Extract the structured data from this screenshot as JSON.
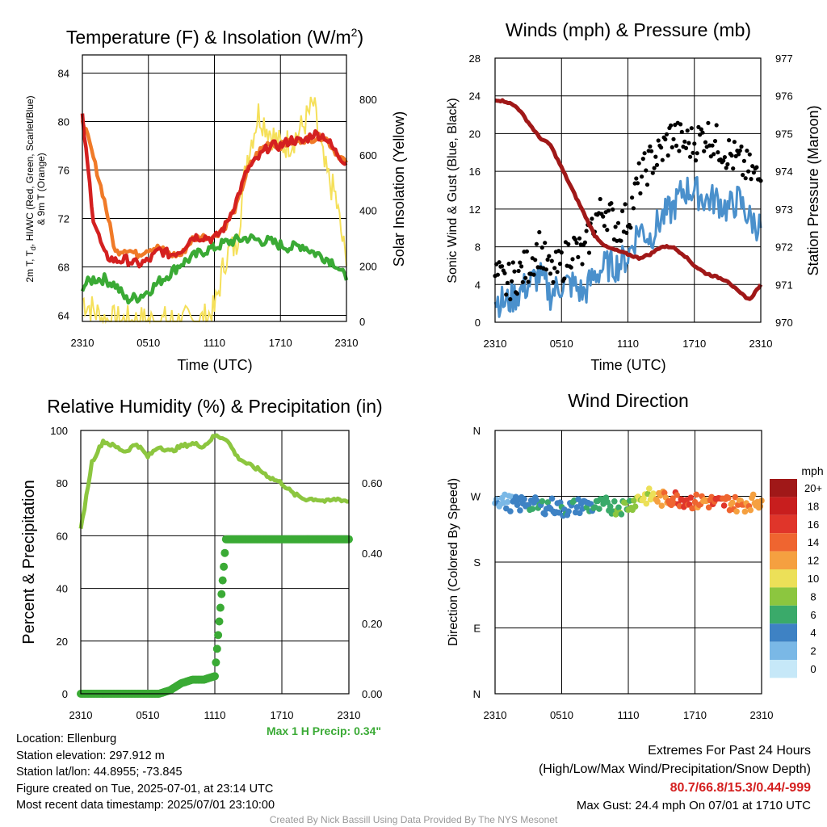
{
  "x_ticks": [
    "2310",
    "0510",
    "1110",
    "1710",
    "2310"
  ],
  "temp": {
    "title_main": "Temperature (F) & Insolation (W/m",
    "title_sup": "2",
    "title_end": ")",
    "ylabel_left_1": "2m T, T",
    "ylabel_left_sub": "d",
    "ylabel_left_2": ", HI/WC (Red, Green, Scarlet/Blue)",
    "ylabel_left_3": "& 9m T (Orange)",
    "ylabel_right": "Solar Insolation (Yellow)",
    "xlabel": "Time (UTC)",
    "left_ticks": [
      "64",
      "68",
      "72",
      "76",
      "80",
      "84"
    ],
    "right_ticks": [
      "0",
      "200",
      "400",
      "600",
      "800"
    ],
    "colors": {
      "temp": "#d42020",
      "dew": "#3aaa35",
      "t9m": "#f07a28",
      "solar": "#f5e05a"
    }
  },
  "winds": {
    "title": "Winds (mph) & Pressure (mb)",
    "ylabel_left": "Sonic Wind & Gust (Blue, Black)",
    "ylabel_right": "Station Pressure (Maroon)",
    "xlabel": "Time (UTC)",
    "left_ticks": [
      "0",
      "4",
      "8",
      "12",
      "16",
      "20",
      "24",
      "28"
    ],
    "right_ticks": [
      "970",
      "971",
      "972",
      "973",
      "974",
      "975",
      "976",
      "977"
    ],
    "colors": {
      "wind": "#4a90cc",
      "gust": "#000000",
      "pressure": "#a01818"
    }
  },
  "rh": {
    "title": "Relative Humidity (%) & Precipitation (in)",
    "ylabel_left": "Percent & Precipitation",
    "left_ticks": [
      "0",
      "20",
      "40",
      "60",
      "80",
      "100"
    ],
    "right_ticks": [
      "0.00",
      "0.20",
      "0.40",
      "0.60"
    ],
    "max_precip": "Max 1 H Precip: 0.34\"",
    "colors": {
      "rh": "#8cc63f",
      "precip": "#3aaa35"
    }
  },
  "wdir": {
    "title": "Wind Direction",
    "ylabel_left": "Direction (Colored By Speed)",
    "dir_ticks": [
      "N",
      "E",
      "S",
      "W",
      "N"
    ],
    "legend_title": "mph",
    "legend_labels": [
      "20+",
      "18",
      "16",
      "14",
      "12",
      "10",
      "8",
      "6",
      "4",
      "2",
      "0"
    ],
    "legend_colors": [
      "#a01818",
      "#c81e1e",
      "#e0352a",
      "#ef6530",
      "#f5a040",
      "#ece058",
      "#8cc63f",
      "#3aaa6a",
      "#3e82c4",
      "#7ab8e6",
      "#c6e8f8"
    ]
  },
  "info": {
    "location": "Location: Ellenburg",
    "elevation": "Station elevation: 297.912 m",
    "latlon": "Station lat/lon: 44.8955; -73.845",
    "created": "Figure created on Tue, 2025-07-01, at 23:14 UTC",
    "recent": "Most recent data timestamp: 2025/07/01 23:10:00"
  },
  "extremes": {
    "title": "Extremes For Past 24 Hours",
    "subtitle": "(High/Low/Max Wind/Precipitation/Snow Depth)",
    "values": "80.7/66.8/15.3/0.44/-999",
    "max_gust": "Max Gust: 24.4 mph On 07/01 at 1710 UTC"
  },
  "credit": "Created By Nick Bassill Using Data Provided By The NYS Mesonet",
  "chart_data": [
    {
      "type": "line",
      "x": [
        0,
        1,
        2,
        3,
        4,
        5,
        6,
        7,
        8,
        9,
        10,
        11,
        12,
        13,
        14,
        15,
        16,
        17,
        18,
        19,
        20,
        21,
        22,
        23,
        24
      ],
      "series": [
        {
          "name": "Red",
          "axis": "left",
          "values": [
            80.3,
            72,
            69,
            68.5,
            68.6,
            68.2,
            68.5,
            69.4,
            69,
            69.4,
            70.5,
            70.5,
            70.3,
            71.4,
            73.5,
            76,
            77,
            78,
            78,
            78.5,
            78.3,
            79,
            78.8,
            77.5,
            76.6
          ]
        },
        {
          "name": "Green",
          "axis": "left",
          "values": [
            66.4,
            67,
            67,
            66.5,
            65.3,
            65.5,
            66,
            66.8,
            67.5,
            68.3,
            68.8,
            69.3,
            69.6,
            70,
            70.2,
            70.4,
            70.2,
            70.1,
            69.8,
            69.6,
            69.8,
            69.2,
            68.8,
            68.3,
            66.9
          ]
        },
        {
          "name": "Orange",
          "axis": "left",
          "values": [
            80.3,
            77,
            73.5,
            69.2,
            69.5,
            69,
            69.5,
            69.6,
            69,
            69,
            70.3,
            70.5,
            70.5,
            71.4,
            73,
            76,
            77.5,
            78.3,
            78,
            78.3,
            78.5,
            78.6,
            78.8,
            77.5,
            76.6
          ]
        },
        {
          "name": "Yellow",
          "axis": "right",
          "values": [
            80,
            40,
            5,
            0,
            0,
            0,
            0,
            0,
            0,
            0,
            0,
            5,
            40,
            230,
            280,
            600,
            750,
            690,
            630,
            650,
            700,
            780,
            550,
            450,
            200
          ]
        }
      ],
      "ylim": [
        63.5,
        85.5
      ],
      "ylim_right": [
        0,
        960
      ]
    },
    {
      "type": "line",
      "x": [
        0,
        1,
        2,
        3,
        4,
        5,
        6,
        7,
        8,
        9,
        10,
        11,
        12,
        13,
        14,
        15,
        16,
        17,
        18,
        19,
        20,
        21,
        22,
        23,
        24
      ],
      "series": [
        {
          "name": "Blue",
          "axis": "left",
          "values": [
            2.5,
            2,
            3,
            4,
            5,
            3,
            4,
            4,
            3,
            5,
            6,
            6,
            7,
            10,
            9,
            11,
            12,
            14,
            14,
            13,
            13,
            12,
            13,
            11,
            10
          ]
        },
        {
          "name": "Black",
          "axis": "left",
          "values": [
            5,
            4,
            5,
            6,
            8,
            5,
            6,
            8,
            7,
            11,
            12,
            10,
            11,
            15,
            17,
            18,
            20,
            19,
            19,
            20,
            19,
            18,
            17,
            16,
            15
          ]
        },
        {
          "name": "Maroon",
          "axis": "right",
          "values": [
            975.9,
            975.85,
            975.7,
            975.3,
            974.9,
            974.7,
            974.1,
            973.5,
            972.9,
            972.3,
            972.0,
            971.9,
            971.8,
            971.7,
            971.8,
            972.0,
            972.0,
            971.8,
            971.5,
            971.3,
            971.2,
            971.1,
            970.8,
            970.6,
            971.0
          ]
        }
      ],
      "ylim": [
        0,
        28
      ],
      "ylim_right": [
        970,
        977
      ]
    },
    {
      "type": "line",
      "x": [
        0,
        1,
        2,
        3,
        4,
        5,
        6,
        7,
        8,
        9,
        10,
        11,
        12,
        13,
        14,
        15,
        16,
        17,
        18,
        19,
        20,
        21,
        22,
        23,
        24
      ],
      "series": [
        {
          "name": "Relative Humidity",
          "axis": "left",
          "values": [
            62,
            88,
            96,
            94,
            92,
            95,
            90,
            94,
            92,
            94,
            95,
            94,
            98,
            97,
            90,
            87,
            85,
            82,
            80,
            76,
            74,
            74,
            73,
            74,
            73
          ]
        },
        {
          "name": "Precipitation",
          "axis": "right",
          "values": [
            0,
            0,
            0,
            0,
            0,
            0,
            0,
            0,
            0.01,
            0.03,
            0.04,
            0.04,
            0.05,
            0.44,
            0.44,
            0.44,
            0.44,
            0.44,
            0.44,
            0.44,
            0.44,
            0.44,
            0.44,
            0.44,
            0.44
          ]
        }
      ],
      "ylim": [
        0,
        100
      ],
      "ylim_right": [
        0,
        0.75
      ]
    },
    {
      "type": "scatter",
      "x": [
        0,
        1,
        2,
        3,
        4,
        5,
        6,
        7,
        8,
        9,
        10,
        11,
        12,
        13,
        14,
        15,
        16,
        17,
        18,
        19,
        20,
        21,
        22,
        23,
        24
      ],
      "direction_deg": [
        268,
        262,
        258,
        262,
        255,
        258,
        252,
        255,
        258,
        255,
        258,
        255,
        258,
        268,
        270,
        266,
        268,
        266,
        262,
        264,
        260,
        262,
        258,
        262,
        264
      ],
      "speed_mph": [
        2,
        3,
        4,
        5,
        5,
        4,
        5,
        5,
        4,
        6,
        6,
        7,
        7,
        9,
        10,
        12,
        14,
        16,
        14,
        13,
        15,
        14,
        13,
        12,
        12
      ],
      "ylim": [
        0,
        360
      ]
    }
  ]
}
